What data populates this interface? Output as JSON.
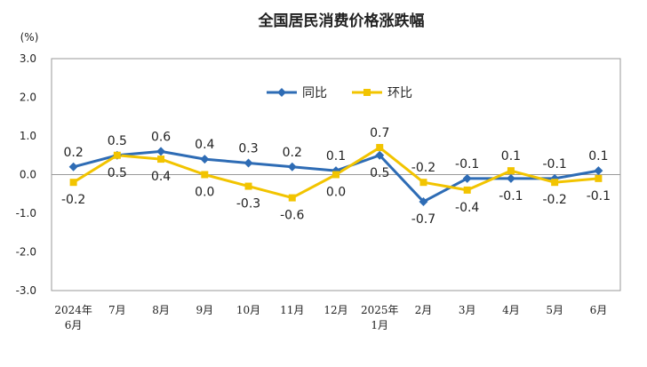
{
  "chart_data": {
    "type": "line",
    "title": "全国居民消费价格涨跌幅",
    "unit": "(%)",
    "ylim": [
      -3.0,
      3.0
    ],
    "yticks": [
      "3.0",
      "2.0",
      "1.0",
      "0.0",
      "-1.0",
      "-2.0",
      "-3.0"
    ],
    "categories": [
      [
        "2024年",
        "6月"
      ],
      [
        "7月"
      ],
      [
        "8月"
      ],
      [
        "9月"
      ],
      [
        "10月"
      ],
      [
        "11月"
      ],
      [
        "12月"
      ],
      [
        "2025年",
        "1月"
      ],
      [
        "2月"
      ],
      [
        "3月"
      ],
      [
        "4月"
      ],
      [
        "5月"
      ],
      [
        "6月"
      ]
    ],
    "series": [
      {
        "name": "同比",
        "color": "#2e6cb5",
        "values": [
          0.2,
          0.5,
          0.6,
          0.4,
          0.3,
          0.2,
          0.1,
          0.5,
          -0.7,
          -0.1,
          -0.1,
          -0.1,
          0.1
        ],
        "labels": [
          "0.2",
          "0.5",
          "0.6",
          "0.4",
          "0.3",
          "0.2",
          "0.1",
          "0.5",
          "-0.7",
          "-0.1",
          "-0.1",
          "-0.1",
          "0.1"
        ]
      },
      {
        "name": "环比",
        "color": "#f2c400",
        "values": [
          -0.2,
          0.5,
          0.4,
          0.0,
          -0.3,
          -0.6,
          0.0,
          0.7,
          -0.2,
          -0.4,
          0.1,
          -0.2,
          -0.1
        ],
        "labels": [
          "-0.2",
          "0.5",
          "0.4",
          "0.0",
          "-0.3",
          "-0.6",
          "0.0",
          "0.7",
          "-0.2",
          "-0.4",
          "0.1",
          "-0.2",
          "-0.1"
        ]
      }
    ],
    "legend": "top-center",
    "grid": false
  }
}
